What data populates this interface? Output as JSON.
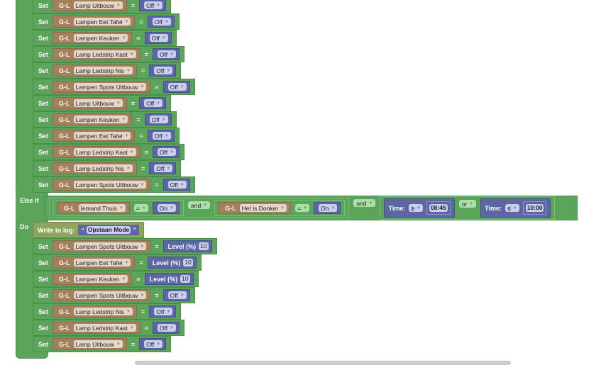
{
  "keywords": {
    "set": "Set",
    "else_if": "Else if",
    "do": "Do",
    "eq": "=",
    "write_to_log": "Write to log:",
    "open_quote": "“",
    "close_quote": "”"
  },
  "device_prefix": "G-L",
  "rows_before": [
    {
      "device": "Lamp Uitbouw",
      "value": "Off"
    },
    {
      "device": "Lampen Eet Tafel",
      "value": "Off"
    },
    {
      "device": "Lampen Keuken",
      "value": "Off"
    },
    {
      "device": "Lamp Ledstrip Kast",
      "value": "Off"
    },
    {
      "device": "Lamp Ledstrip Nis",
      "value": "Off"
    },
    {
      "device": "Lampen Spots Uitbouw",
      "value": "Off"
    },
    {
      "device": "Lamp Uitbouw",
      "value": "Off"
    },
    {
      "device": "Lampen Keuken",
      "value": "Off"
    },
    {
      "device": "Lampen Eet Tafel",
      "value": "Off"
    },
    {
      "device": "Lamp Ledstrip Kast",
      "value": "Off"
    },
    {
      "device": "Lamp Ledstrip Nis",
      "value": "Off"
    },
    {
      "device": "Lampen Spots Uitbouw",
      "value": "Off"
    }
  ],
  "condition": {
    "cmp1": {
      "device": "Iemand Thuis",
      "op": "=",
      "value": "On"
    },
    "and1": "and",
    "cmp2": {
      "device": "Het is Donker",
      "op": "=",
      "value": "On"
    },
    "and2": "and",
    "time1": {
      "label": "Time:",
      "op": "≥",
      "value": "08:45"
    },
    "or": "or",
    "time2": {
      "label": "Time:",
      "op": "≤",
      "value": "10:00"
    }
  },
  "log_text": "Opstaan Mode",
  "rows_after": [
    {
      "device": "Lampen Spots Uitbouw",
      "level_label": "Level (%)",
      "level": "10"
    },
    {
      "device": "Lampen Eet Tafel",
      "level_label": "Level (%)",
      "level": "10"
    },
    {
      "device": "Lampen Keuken",
      "level_label": "Level (%)",
      "level": "10"
    },
    {
      "device": "Lampen Spots Uitbouw",
      "value": "Off"
    },
    {
      "device": "Lamp Ledstrip Nis",
      "value": "Off"
    },
    {
      "device": "Lamp Ledstrip Kast",
      "value": "Off"
    },
    {
      "device": "Lamp Uitbouw",
      "value": "Off"
    }
  ]
}
